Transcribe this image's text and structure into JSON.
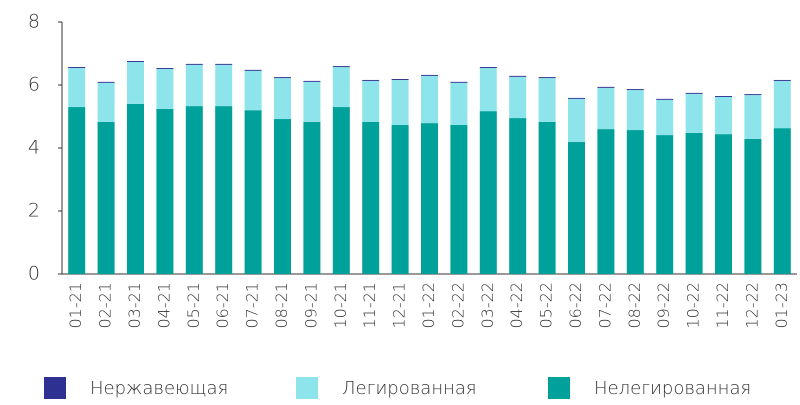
{
  "chart_data": {
    "type": "stacked_bar",
    "categories": [
      "01-21",
      "02-21",
      "03-21",
      "04-21",
      "05-21",
      "06-21",
      "07-21",
      "08-21",
      "09-21",
      "10-21",
      "11-21",
      "12-21",
      "01-22",
      "02-22",
      "03-22",
      "04-22",
      "05-22",
      "06-22",
      "07-22",
      "08-22",
      "09-22",
      "10-22",
      "11-22",
      "12-22",
      "01-23"
    ],
    "series": [
      {
        "name": "Нержавеющая",
        "color": "#2e3192",
        "values": [
          0.03,
          0.03,
          0.03,
          0.03,
          0.03,
          0.03,
          0.03,
          0.03,
          0.03,
          0.03,
          0.03,
          0.03,
          0.03,
          0.03,
          0.03,
          0.03,
          0.03,
          0.03,
          0.03,
          0.03,
          0.03,
          0.03,
          0.03,
          0.03,
          0.03
        ]
      },
      {
        "name": "Легированная",
        "color": "#8de4ea",
        "values": [
          1.24,
          1.24,
          1.33,
          1.27,
          1.31,
          1.31,
          1.25,
          1.3,
          1.27,
          1.27,
          1.3,
          1.43,
          1.5,
          1.34,
          1.37,
          1.31,
          1.39,
          1.37,
          1.31,
          1.27,
          1.12,
          1.24,
          1.18,
          1.39,
          1.5
        ]
      },
      {
        "name": "Нелегированная",
        "color": "#00a19a",
        "values": [
          5.3,
          4.83,
          5.4,
          5.24,
          5.33,
          5.33,
          5.2,
          4.92,
          4.83,
          5.3,
          4.83,
          4.73,
          4.79,
          4.73,
          5.17,
          4.95,
          4.83,
          4.19,
          4.6,
          4.57,
          4.41,
          4.48,
          4.44,
          4.29,
          4.63
        ]
      }
    ],
    "ylim": [
      0,
      8
    ],
    "yticks": [
      0,
      2,
      4,
      6,
      8
    ],
    "grid": false,
    "legend": "bottom"
  }
}
